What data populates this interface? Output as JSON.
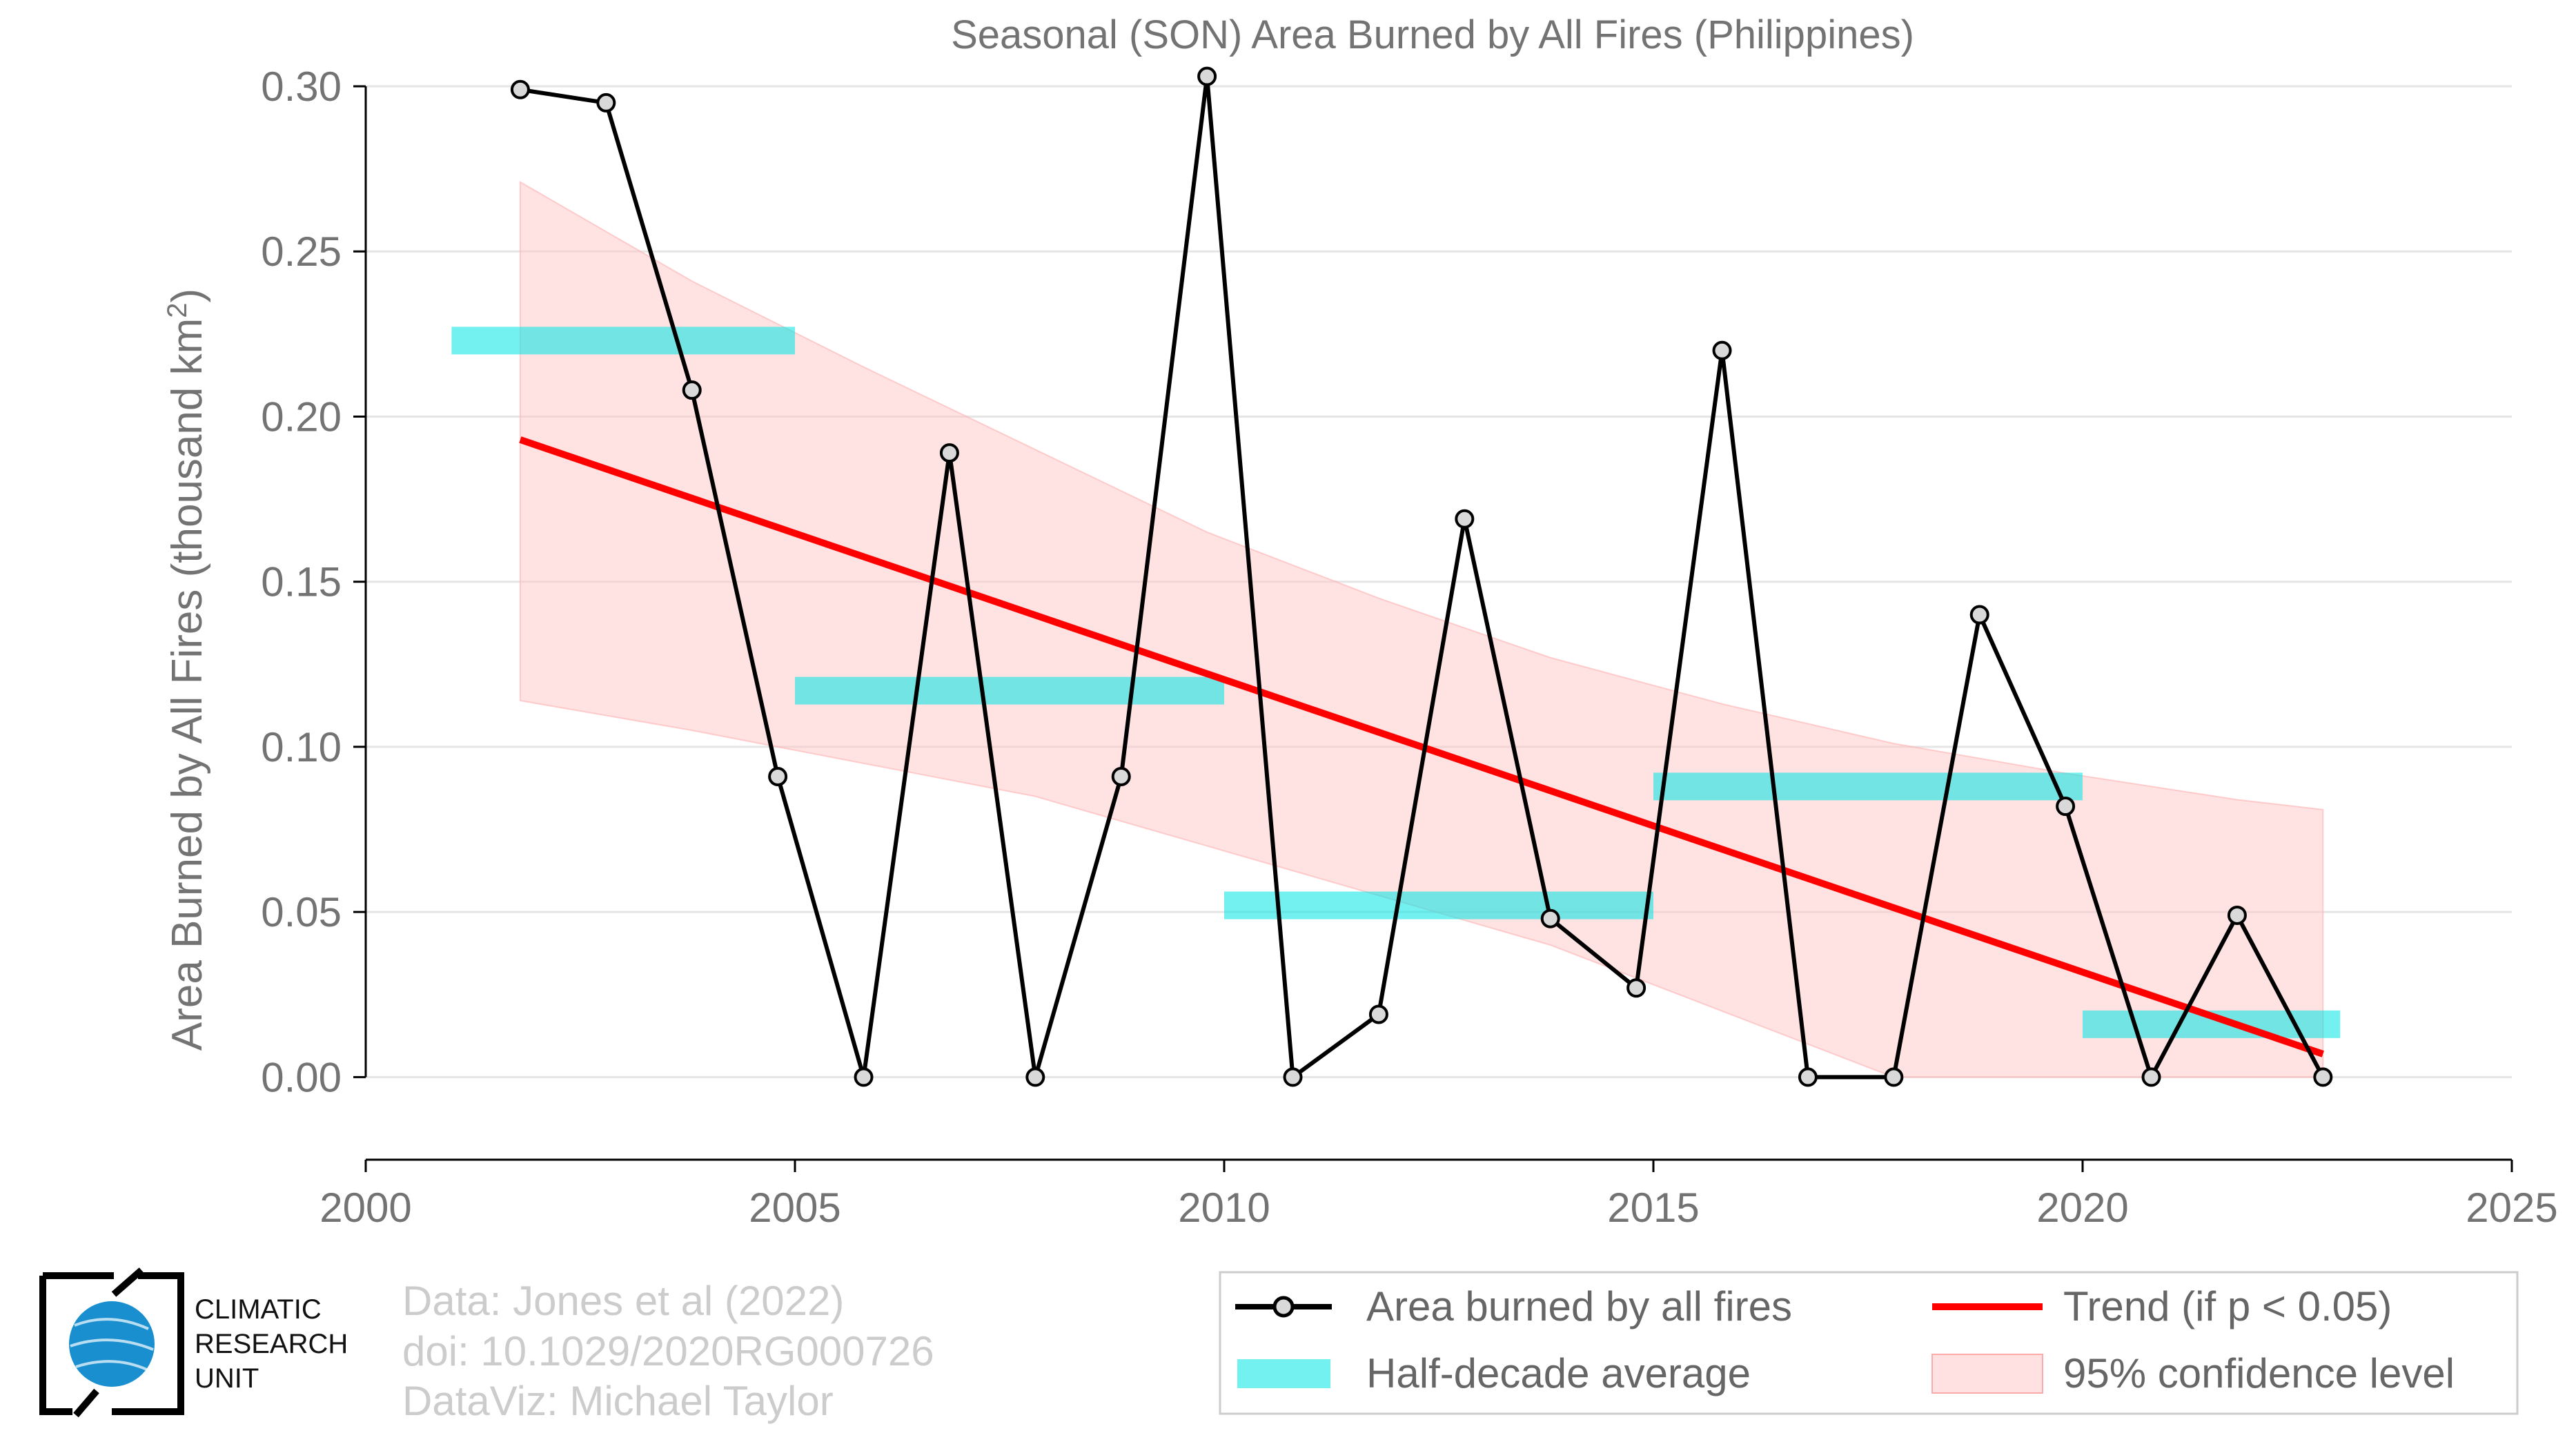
{
  "chart_data": {
    "type": "line",
    "title": "Seasonal (SON) Area Burned by All Fires (Philippines)",
    "ylabel_main": "Area Burned by All Fires (thousand km",
    "ylabel_sup": "2",
    "ylabel_close": ")",
    "xlabel": "",
    "xlim": [
      2000,
      2025
    ],
    "ylim": [
      -0.025,
      0.3
    ],
    "x_ticks": [
      "2000",
      "2005",
      "2010",
      "2015",
      "2020",
      "2025"
    ],
    "y_ticks": [
      "0.00",
      "0.05",
      "0.10",
      "0.15",
      "0.20",
      "0.25",
      "0.30"
    ],
    "grid": true,
    "legend_position": "bottom-right",
    "series": [
      {
        "name": "Area burned by all fires",
        "color": "#000000",
        "x": [
          2001.8,
          2002.8,
          2003.8,
          2004.8,
          2005.8,
          2006.8,
          2007.8,
          2008.8,
          2009.8,
          2010.8,
          2011.8,
          2012.8,
          2013.8,
          2014.8,
          2015.8,
          2016.8,
          2017.8,
          2018.8,
          2019.8,
          2020.8,
          2021.8,
          2022.8
        ],
        "values": [
          0.299,
          0.295,
          0.208,
          0.091,
          0.0,
          0.189,
          0.0,
          0.091,
          0.303,
          0.0,
          0.019,
          0.169,
          0.048,
          0.027,
          0.22,
          0.0,
          0.0,
          0.14,
          0.082,
          0.0,
          0.049,
          0.0
        ]
      },
      {
        "name": "Half-decade average",
        "color": "#00e5e5",
        "segments": [
          {
            "x_start": 2001,
            "x_end": 2005,
            "value": 0.223
          },
          {
            "x_start": 2005,
            "x_end": 2010,
            "value": 0.117
          },
          {
            "x_start": 2010,
            "x_end": 2015,
            "value": 0.052
          },
          {
            "x_start": 2015,
            "x_end": 2020,
            "value": 0.088
          },
          {
            "x_start": 2020,
            "x_end": 2023,
            "value": 0.016
          }
        ]
      },
      {
        "name": "Trend (if p < 0.05)",
        "color": "#ff0000",
        "x": [
          2001.8,
          2022.8
        ],
        "values": [
          0.193,
          0.007
        ]
      },
      {
        "name": "95% confidence level",
        "color": "#ffc8c8",
        "x": [
          2001.8,
          2003.8,
          2005.8,
          2007.8,
          2009.8,
          2011.8,
          2013.8,
          2015.8,
          2017.8,
          2019.8,
          2021.8,
          2022.8
        ],
        "upper": [
          0.271,
          0.241,
          0.215,
          0.19,
          0.165,
          0.145,
          0.127,
          0.113,
          0.101,
          0.092,
          0.084,
          0.081
        ],
        "lower": [
          0.114,
          0.105,
          0.095,
          0.085,
          0.07,
          0.055,
          0.04,
          0.02,
          0.0,
          0.0,
          0.0,
          0.0
        ]
      }
    ]
  },
  "legend": {
    "items": [
      {
        "label": "Area burned by all fires"
      },
      {
        "label": "Trend (if p < 0.05)"
      },
      {
        "label": "Half-decade average"
      },
      {
        "label": "95% confidence level"
      }
    ]
  },
  "credits": {
    "line1": "Data: Jones et al (2022)",
    "line2": "doi: 10.1029/2020RG000726",
    "line3": "DataViz: Michael Taylor"
  },
  "logo": {
    "line1": "CLIMATIC",
    "line2": "RESEARCH",
    "line3": "UNIT",
    "globe_color": "#1a8fd0"
  }
}
